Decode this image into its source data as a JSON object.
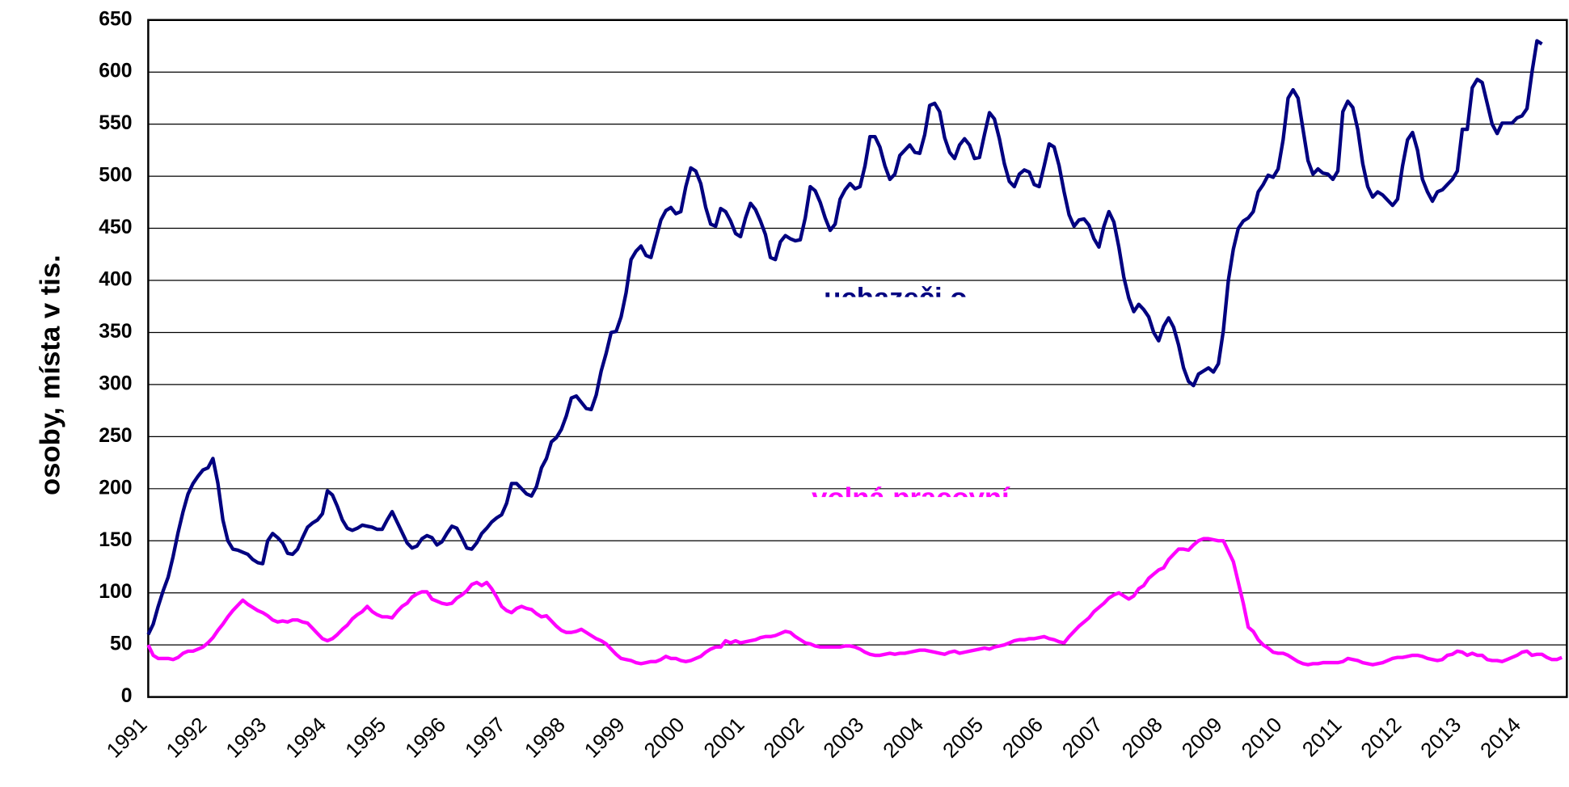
{
  "chart_data": {
    "type": "line",
    "y_label": "osoby, místa v tis.",
    "categories": [
      "1991",
      null,
      null,
      null,
      null,
      null,
      null,
      null,
      null,
      null,
      null,
      null,
      "1992",
      null,
      null,
      null,
      null,
      null,
      null,
      null,
      null,
      null,
      null,
      null,
      "1993",
      null,
      null,
      null,
      null,
      null,
      null,
      null,
      null,
      null,
      null,
      null,
      "1994",
      null,
      null,
      null,
      null,
      null,
      null,
      null,
      null,
      null,
      null,
      null,
      "1995",
      null,
      null,
      null,
      null,
      null,
      null,
      null,
      null,
      null,
      null,
      null,
      "1996",
      null,
      null,
      null,
      null,
      null,
      null,
      null,
      null,
      null,
      null,
      null,
      "1997",
      null,
      null,
      null,
      null,
      null,
      null,
      null,
      null,
      null,
      null,
      null,
      "1998",
      null,
      null,
      null,
      null,
      null,
      null,
      null,
      null,
      null,
      null,
      null,
      "1999",
      null,
      null,
      null,
      null,
      null,
      null,
      null,
      null,
      null,
      null,
      null,
      "2000",
      null,
      null,
      null,
      null,
      null,
      null,
      null,
      null,
      null,
      null,
      null,
      "2001",
      null,
      null,
      null,
      null,
      null,
      null,
      null,
      null,
      null,
      null,
      null,
      "2002",
      null,
      null,
      null,
      null,
      null,
      null,
      null,
      null,
      null,
      null,
      null,
      "2003",
      null,
      null,
      null,
      null,
      null,
      null,
      null,
      null,
      null,
      null,
      null,
      "2004",
      null,
      null,
      null,
      null,
      null,
      null,
      null,
      null,
      null,
      null,
      null,
      "2005",
      null,
      null,
      null,
      null,
      null,
      null,
      null,
      null,
      null,
      null,
      null,
      "2006",
      null,
      null,
      null,
      null,
      null,
      null,
      null,
      null,
      null,
      null,
      null,
      "2007",
      null,
      null,
      null,
      null,
      null,
      null,
      null,
      null,
      null,
      null,
      null,
      "2008",
      null,
      null,
      null,
      null,
      null,
      null,
      null,
      null,
      null,
      null,
      null,
      "2009",
      null,
      null,
      null,
      null,
      null,
      null,
      null,
      null,
      null,
      null,
      null,
      "2010",
      null,
      null,
      null,
      null,
      null,
      null,
      null,
      null,
      null,
      null,
      null,
      "2011",
      null,
      null,
      null,
      null,
      null,
      null,
      null,
      null,
      null,
      null,
      null,
      "2012",
      null,
      null,
      null,
      null,
      null,
      null,
      null,
      null,
      null,
      null,
      null,
      "2013",
      null,
      null,
      null,
      null,
      null,
      null,
      null,
      null,
      null,
      null,
      null,
      "2014",
      null,
      null,
      null,
      null,
      null,
      null,
      null,
      null
    ],
    "series": [
      {
        "color": "#000080",
        "values": [
          60,
          70,
          87,
          102,
          115,
          135,
          158,
          178,
          195,
          205,
          212,
          218,
          220,
          229,
          205,
          170,
          150,
          142,
          141,
          139,
          137,
          132,
          129,
          128,
          150,
          157,
          153,
          148,
          138,
          137,
          142,
          153,
          163,
          167,
          170,
          176,
          198,
          194,
          183,
          170,
          162,
          160,
          162,
          165,
          164,
          163,
          161,
          161,
          170,
          178,
          168,
          158,
          148,
          143,
          145,
          152,
          155,
          153,
          146,
          149,
          157,
          164,
          162,
          153,
          143,
          142,
          148,
          157,
          162,
          168,
          172,
          175,
          186,
          205,
          205,
          200,
          195,
          193,
          202,
          220,
          229,
          245,
          249,
          257,
          270,
          287,
          289,
          283,
          277,
          276,
          290,
          313,
          330,
          350,
          351,
          365,
          388,
          420,
          428,
          433,
          424,
          422,
          440,
          458,
          467,
          470,
          464,
          466,
          490,
          508,
          505,
          493,
          470,
          454,
          452,
          469,
          466,
          457,
          445,
          442,
          460,
          474,
          468,
          457,
          444,
          422,
          420,
          437,
          443,
          440,
          438,
          439,
          460,
          490,
          486,
          475,
          460,
          448,
          454,
          478,
          487,
          493,
          488,
          490,
          510,
          538,
          538,
          528,
          510,
          497,
          502,
          520,
          525,
          530,
          523,
          522,
          540,
          568,
          570,
          562,
          537,
          523,
          517,
          530,
          536,
          530,
          517,
          518,
          540,
          561,
          555,
          536,
          512,
          495,
          490,
          502,
          506,
          504,
          492,
          490,
          510,
          531,
          528,
          510,
          485,
          463,
          452,
          458,
          459,
          453,
          440,
          432,
          452,
          466,
          456,
          432,
          403,
          383,
          370,
          377,
          372,
          365,
          350,
          342,
          356,
          364,
          355,
          338,
          316,
          303,
          299,
          310,
          313,
          316,
          312,
          320,
          352,
          400,
          430,
          450,
          457,
          460,
          466,
          485,
          492,
          501,
          499,
          507,
          535,
          575,
          583,
          575,
          545,
          515,
          502,
          507,
          503,
          502,
          497,
          505,
          562,
          572,
          566,
          545,
          512,
          490,
          480,
          485,
          482,
          477,
          472,
          478,
          510,
          535,
          542,
          525,
          497,
          485,
          476,
          485,
          487,
          492,
          497,
          505,
          545,
          545,
          585,
          593,
          590,
          570,
          550,
          541,
          551,
          551,
          551,
          556,
          558,
          565,
          600,
          630,
          627,
          null,
          null,
          null,
          null
        ]
      },
      {
        "color": "#ff00ff",
        "values": [
          50,
          40,
          37,
          37,
          37,
          36,
          38,
          42,
          44,
          44,
          46,
          48,
          52,
          57,
          64,
          70,
          77,
          83,
          88,
          93,
          89,
          86,
          83,
          81,
          78,
          74,
          72,
          73,
          72,
          74,
          74,
          72,
          71,
          66,
          61,
          56,
          54,
          56,
          60,
          65,
          69,
          75,
          79,
          82,
          87,
          82,
          79,
          77,
          77,
          76,
          82,
          87,
          90,
          96,
          99,
          101,
          101,
          94,
          92,
          90,
          89,
          90,
          95,
          98,
          102,
          108,
          110,
          107,
          110,
          104,
          96,
          87,
          83,
          81,
          85,
          87,
          85,
          84,
          80,
          77,
          78,
          73,
          68,
          64,
          62,
          62,
          63,
          65,
          62,
          59,
          56,
          54,
          51,
          46,
          41,
          37,
          36,
          35,
          33,
          32,
          33,
          34,
          34,
          36,
          39,
          37,
          37,
          35,
          34,
          35,
          37,
          39,
          43,
          46,
          48,
          48,
          54,
          52,
          54,
          52,
          53,
          54,
          55,
          57,
          58,
          58,
          59,
          61,
          63,
          62,
          58,
          55,
          52,
          51,
          49,
          48,
          48,
          48,
          48,
          48,
          49,
          49,
          48,
          46,
          43,
          41,
          40,
          40,
          41,
          42,
          41,
          42,
          42,
          43,
          44,
          45,
          45,
          44,
          43,
          42,
          41,
          43,
          44,
          42,
          43,
          44,
          45,
          46,
          47,
          46,
          48,
          49,
          50,
          52,
          54,
          55,
          55,
          56,
          56,
          57,
          58,
          56,
          55,
          53,
          52,
          58,
          63,
          68,
          72,
          76,
          82,
          86,
          90,
          95,
          98,
          100,
          97,
          94,
          97,
          104,
          107,
          114,
          118,
          122,
          124,
          132,
          137,
          142,
          142,
          141,
          146,
          150,
          152,
          152,
          151,
          150,
          150,
          140,
          130,
          110,
          90,
          67,
          63,
          55,
          50,
          47,
          43,
          42,
          42,
          40,
          37,
          34,
          32,
          31,
          32,
          32,
          33,
          33,
          33,
          33,
          34,
          37,
          36,
          35,
          33,
          32,
          31,
          32,
          33,
          35,
          37,
          38,
          38,
          39,
          40,
          40,
          39,
          37,
          36,
          35,
          36,
          40,
          41,
          44,
          43,
          40,
          42,
          40,
          40,
          36,
          35,
          35,
          34,
          36,
          38,
          40,
          43,
          44,
          40,
          41,
          41,
          38,
          36,
          36,
          38
        ]
      }
    ],
    "annotations": [
      {
        "text": "uchazeči o",
        "color": "#000080"
      },
      {
        "text": "volná pracovní",
        "color": "#ff00ff"
      }
    ],
    "ylim": [
      0,
      650
    ],
    "yticks": [
      0,
      50,
      100,
      150,
      200,
      250,
      300,
      350,
      400,
      450,
      500,
      550,
      600,
      650
    ],
    "grid": true
  }
}
